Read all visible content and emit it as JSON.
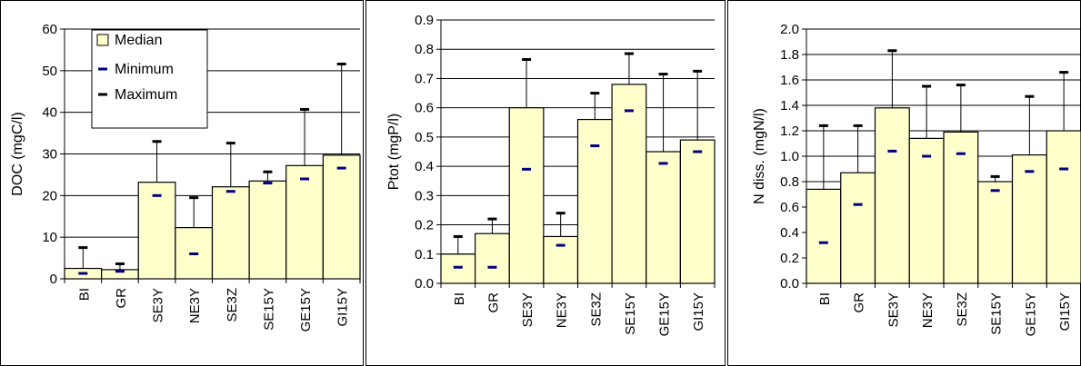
{
  "chart_data": [
    {
      "type": "bar",
      "categories": [
        "BI",
        "GR",
        "SE3Y",
        "NE3Y",
        "SE3Z",
        "SE15Y",
        "GE15Y",
        "GI15Y"
      ],
      "ylabel": "DOC (mgC/l)",
      "ylim": [
        0,
        60
      ],
      "ytick_labels": [
        "0",
        "10",
        "20",
        "30",
        "40",
        "50",
        "60"
      ],
      "grid": true,
      "legend": {
        "position": "top-left",
        "entries": [
          "Median",
          "Minimum",
          "Maximum"
        ]
      },
      "series": [
        {
          "name": "Median",
          "values": [
            2.5,
            2.2,
            23.2,
            12.3,
            22.1,
            23.5,
            27.2,
            29.7
          ]
        },
        {
          "name": "Minimum",
          "values": [
            1.3,
            1.8,
            20.0,
            6.0,
            21.0,
            23.0,
            24.0,
            26.6
          ]
        },
        {
          "name": "Maximum",
          "values": [
            7.5,
            3.6,
            33.0,
            19.5,
            32.6,
            25.7,
            40.7,
            51.6
          ]
        }
      ]
    },
    {
      "type": "bar",
      "categories": [
        "BI",
        "GR",
        "SE3Y",
        "NE3Y",
        "SE3Z",
        "SE15Y",
        "GE15Y",
        "GI15Y"
      ],
      "ylabel": "Ptot (mgP/l)",
      "ylim": [
        0,
        0.9
      ],
      "ytick_labels": [
        "0.0",
        "0.1",
        "0.2",
        "0.3",
        "0.4",
        "0.5",
        "0.6",
        "0.7",
        "0.8",
        "0.9"
      ],
      "grid": true,
      "series": [
        {
          "name": "Median",
          "values": [
            0.1,
            0.17,
            0.6,
            0.16,
            0.56,
            0.68,
            0.45,
            0.49
          ]
        },
        {
          "name": "Minimum",
          "values": [
            0.055,
            0.055,
            0.39,
            0.13,
            0.47,
            0.59,
            0.41,
            0.45
          ]
        },
        {
          "name": "Maximum",
          "values": [
            0.16,
            0.22,
            0.765,
            0.24,
            0.65,
            0.785,
            0.715,
            0.725
          ]
        }
      ]
    },
    {
      "type": "bar",
      "categories": [
        "BI",
        "GR",
        "SE3Y",
        "NE3Y",
        "SE3Z",
        "SE15Y",
        "GE15Y",
        "GI15Y"
      ],
      "ylabel": "N diss. (mgN/l)",
      "ylim": [
        0,
        2.0
      ],
      "ytick_labels": [
        "0.0",
        "0.2",
        "0.4",
        "0.6",
        "0.8",
        "1.0",
        "1.2",
        "1.4",
        "1.6",
        "1.8",
        "2.0"
      ],
      "grid": true,
      "series": [
        {
          "name": "Median",
          "values": [
            0.74,
            0.87,
            1.38,
            1.14,
            1.19,
            0.8,
            1.01,
            1.2
          ]
        },
        {
          "name": "Minimum",
          "values": [
            0.32,
            0.62,
            1.04,
            1.0,
            1.02,
            0.73,
            0.88,
            0.9
          ]
        },
        {
          "name": "Maximum",
          "values": [
            1.24,
            1.24,
            1.83,
            1.55,
            1.56,
            0.84,
            1.47,
            1.66
          ]
        }
      ]
    }
  ],
  "colors": {
    "bar_fill": "#ffffcc",
    "bar_stroke": "#000000",
    "min_marker": "#000080",
    "max_marker": "#000000",
    "grid": "#000000"
  }
}
